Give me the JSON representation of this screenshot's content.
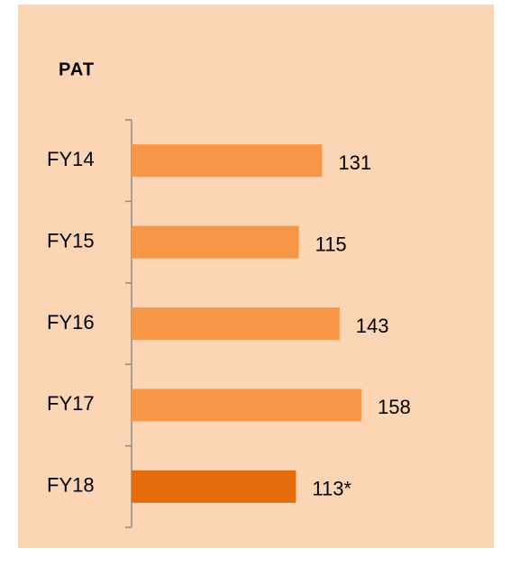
{
  "chart_data": {
    "type": "bar",
    "orientation": "horizontal",
    "title": "PAT",
    "categories": [
      "FY14",
      "FY15",
      "FY16",
      "FY17",
      "FY18"
    ],
    "values": [
      131,
      115,
      143,
      158,
      113
    ],
    "value_labels": [
      "131",
      "115",
      "143",
      "158",
      "113*"
    ],
    "colors": [
      "#F79646",
      "#F79646",
      "#F79646",
      "#F79646",
      "#E46C0A"
    ],
    "background": "#FCD5B4",
    "title_color": "#B5121B",
    "grid": false
  }
}
